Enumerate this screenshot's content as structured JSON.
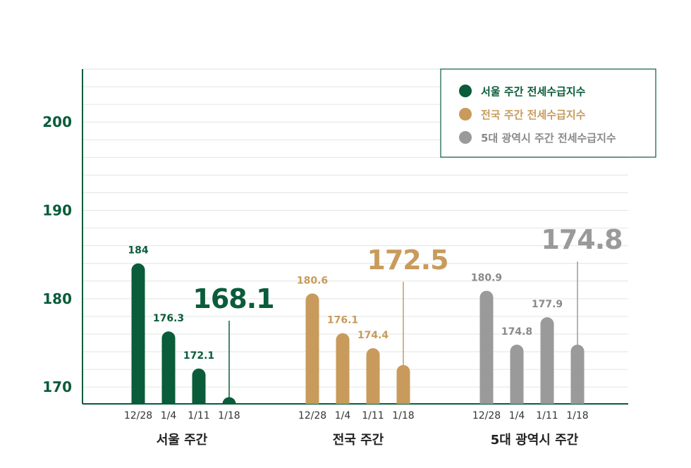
{
  "chart_data": {
    "type": "bar",
    "title": "",
    "xlabel": "",
    "ylabel": "",
    "ylim": [
      168.1,
      206
    ],
    "y_ticks": [
      "170",
      "180",
      "190",
      "200"
    ],
    "grid": true,
    "legend_position": "top-right",
    "categories": [
      "12/28",
      "1/4",
      "1/11",
      "1/18"
    ],
    "groups": [
      {
        "label": "서울 주간",
        "series_name": "서울 주간 전세수급지수",
        "color": "#0a5c3a",
        "values": [
          184,
          176.3,
          172.1,
          168.1
        ],
        "value_labels": [
          "184",
          "176.3",
          "172.1",
          "168.1"
        ],
        "highlight_last": true
      },
      {
        "label": "전국 주간",
        "series_name": "전국 주간 전세수급지수",
        "color": "#c89b5c",
        "values": [
          180.6,
          176.1,
          174.4,
          172.5
        ],
        "value_labels": [
          "180.6",
          "176.1",
          "174.4",
          "172.5"
        ],
        "highlight_last": true
      },
      {
        "label": "5대 광역시 주간",
        "series_name": "5대 광역시 주간 전세수급지수",
        "color": "#9a9a9a",
        "values": [
          180.9,
          174.8,
          177.9,
          174.8
        ],
        "value_labels": [
          "180.9",
          "174.8",
          "177.9",
          "174.8"
        ],
        "highlight_last": true
      }
    ]
  },
  "colors": {
    "axis": "#0a5c3a",
    "grid": "#dfe6e2",
    "tick_y": "#0a5c3a",
    "legend_border": "#0a5c3a"
  }
}
